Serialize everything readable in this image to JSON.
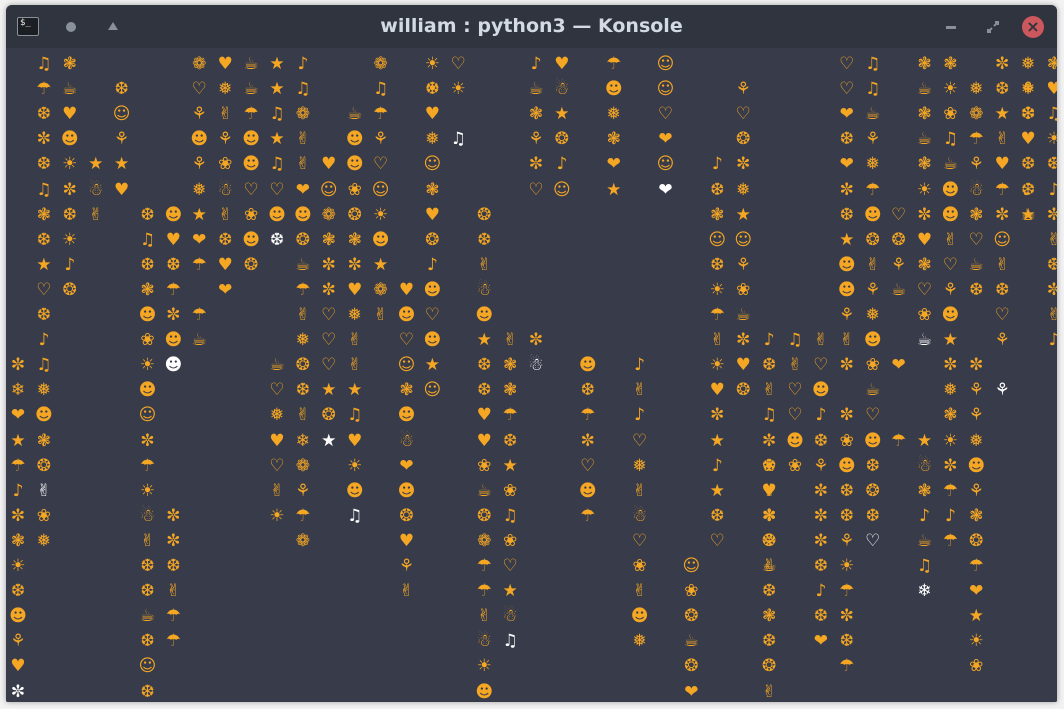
{
  "window": {
    "title": "william : python3 — Konsole",
    "app_icon_text": "$_",
    "close_symbol": "×"
  },
  "colors": {
    "background": "#383c4a",
    "titlebar": "#2f343f",
    "glyph": "#f5a623",
    "glyph_highlight": "#ffffff",
    "close_button": "#cc575d"
  },
  "icons": {
    "pin": "dot-icon",
    "keep_above": "triangle-up-icon",
    "minimize": "minimize-icon",
    "maximize": "restore-icon",
    "close": "close-icon"
  },
  "terminal": {
    "columns": [
      {
        "c": 0,
        "r": 12,
        "g": "✼❄❤★☂♪✼❃☀❆☻⚘♥✼",
        "w": "00000000000001"
      },
      {
        "c": 1,
        "r": 0,
        "g": "♫☂❆✼❆♫❃❆★♡❆♪♫❅☻❃❂✌❀❅",
        "w": "00000000000000000100"
      },
      {
        "c": 2,
        "r": 0,
        "g": "❃☕♥☻☀✼❆☀♪❂",
        "w": "0000000000"
      },
      {
        "c": 3,
        "r": 4,
        "g": "★☃✌",
        "w": "000"
      },
      {
        "c": 4,
        "r": 1,
        "g": "❆☺⚘★♥",
        "w": "00000"
      },
      {
        "c": 5,
        "r": 6,
        "g": "❆♫❆❃☻❀☀☻☺✼☂☀☃✌❆❆☕❆☺❆♥",
        "w": "000000000000000000000"
      },
      {
        "c": 6,
        "r": 8,
        "g": "❆☂✼☻",
        "w": "0003"
      },
      {
        "c": 6,
        "r": 6,
        "g": "☻♥❆",
        "w": "000"
      },
      {
        "c": 6,
        "r": 12,
        "g": "☻",
        "w": "1"
      },
      {
        "c": 6,
        "r": 18,
        "g": "✼✼❆✌☂☂",
        "w": "000000"
      },
      {
        "c": 7,
        "r": 0,
        "g": "❁♡⚘☻⚘❅★❤☂",
        "w": "000000000"
      },
      {
        "c": 7,
        "r": 10,
        "g": "☂☕",
        "w": "00"
      },
      {
        "c": 8,
        "r": 0,
        "g": "♥❅✌⚘❀☃✌❆♥",
        "w": "000000000"
      },
      {
        "c": 8,
        "r": 9,
        "g": "❤",
        "w": "0"
      },
      {
        "c": 9,
        "r": 0,
        "g": "☕☕☂☻☻♡❀☻❂",
        "w": "000000000"
      },
      {
        "c": 10,
        "r": 0,
        "g": "★★♫★♫♡☻❆",
        "w": "00000001"
      },
      {
        "c": 10,
        "r": 12,
        "g": "☕♡❅♥♡✌☀",
        "w": "0000000"
      },
      {
        "c": 11,
        "r": 0,
        "g": "♪♫❁✌✌❤☻❂☕☂✌❅❂❆✌❄❁⚘☂❁",
        "w": "00000000000000000000"
      },
      {
        "c": 11,
        "r": 10,
        "g": "",
        "w": ""
      },
      {
        "c": 12,
        "r": 4,
        "g": "♥☺❁❃✼✼♡♡♡★❂★",
        "w": "000000000001"
      },
      {
        "c": 13,
        "r": 2,
        "g": "☕☻☻❀❂❃✼♥❅✌✌★♫♥☀☻♫",
        "w": "00000000000000001"
      },
      {
        "c": 14,
        "r": 0,
        "g": "❁♫☂⚘♡☺☀☻★❁✌",
        "w": "00000000000"
      },
      {
        "c": 15,
        "r": 9,
        "g": "♥☻♡☺❃☻☃❤☻❂♥⚘✌",
        "w": "0000000000000"
      },
      {
        "c": 16,
        "r": 0,
        "g": "☀❆♥❅☺❃♥❂♪☻♡☻★☺",
        "w": "00000000000000"
      },
      {
        "c": 16,
        "r": 1,
        "g": "☀",
        "w": "0"
      },
      {
        "c": 17,
        "r": 0,
        "g": "♡",
        "w": "0"
      },
      {
        "c": 17,
        "r": 3,
        "g": "♫",
        "w": "1"
      },
      {
        "c": 17,
        "r": 4,
        "g": "",
        "w": ""
      },
      {
        "c": 17,
        "r": 6,
        "g": "",
        "w": ""
      },
      {
        "c": 17,
        "r": 11,
        "g": "",
        "w": ""
      },
      {
        "c": 17,
        "r": 1,
        "g": "☀",
        "w": "0"
      },
      {
        "c": 18,
        "r": 6,
        "g": "❂❆✌☃☻★❆❆♥♥❀☕❂❁☂☂✌☃☀☻❀☻",
        "w": "0000000000000000000000"
      },
      {
        "c": 19,
        "r": 11,
        "g": "✌❃❃☂❆★❀♫❀♡★☃♫",
        "w": "0000000000001"
      },
      {
        "c": 20,
        "r": 11,
        "g": "✼☃",
        "w": "01"
      },
      {
        "c": 20,
        "r": 0,
        "g": "♪☕❃⚘✼♡",
        "w": "000000"
      },
      {
        "c": 21,
        "r": 0,
        "g": "♥☃★❂♪☺",
        "w": "000000"
      },
      {
        "c": 21,
        "r": 5,
        "g": "",
        "w": ""
      },
      {
        "c": 22,
        "r": 12,
        "g": "☻❆☂✼♡☻☂",
        "w": "0000000"
      },
      {
        "c": 23,
        "r": 0,
        "g": "☂☻❅❃❤★",
        "w": "000000"
      },
      {
        "c": 24,
        "r": 12,
        "g": "♪✌♪♡❅✌☃♡❀✌☻❅",
        "w": "000000000000"
      },
      {
        "c": 25,
        "r": 0,
        "g": "☺☺♡❤☺❤",
        "w": "000001"
      },
      {
        "c": 26,
        "r": 20,
        "g": "☺❀❂☕❂❤",
        "w": "000000"
      },
      {
        "c": 27,
        "r": 4,
        "g": "♪❆❃☺❆☀☂✌☀♥✼★♪★❆♡",
        "w": "0000000000000000"
      },
      {
        "c": 28,
        "r": 1,
        "g": "⚘♡❂✼❅★☺⚘❀☕✼♥❂",
        "w": "0000000000000"
      },
      {
        "c": 29,
        "r": 11,
        "g": "♪❆✌♫✼❆♥❃❂✌",
        "w": "0000000000"
      },
      {
        "c": 29,
        "r": 16,
        "g": "❀✌",
        "w": "00"
      },
      {
        "c": 29,
        "r": 18,
        "g": "✼⚘☕❆❃❆❂✌♫",
        "w": "000000000"
      },
      {
        "c": 30,
        "r": 11,
        "g": "♫✌♡♡☻❀",
        "w": "000000"
      },
      {
        "c": 31,
        "r": 11,
        "g": "✌♡",
        "w": "00"
      },
      {
        "c": 31,
        "r": 13,
        "g": "☻♪❆⚘✼✼✼❆♪❆❤",
        "w": "00000000000"
      },
      {
        "c": 32,
        "r": 0,
        "g": "♡♡❤❆❤✼❆★☻☻⚘✌✼",
        "w": "0000000000000"
      },
      {
        "c": 32,
        "r": 14,
        "g": "✼❀☻❆❆⚘☀☂✼❆☂",
        "w": "00000000000"
      },
      {
        "c": 33,
        "r": 0,
        "g": "♫♫☕⚘❅☂☻❂✌⚘❅☻",
        "w": "000000000000"
      },
      {
        "c": 33,
        "r": 12,
        "g": "❀☕♡☻❆❂❆♡",
        "w": "00000001"
      },
      {
        "c": 34,
        "r": 6,
        "g": "♡❂⚘☕",
        "w": "0000"
      },
      {
        "c": 34,
        "r": 12,
        "g": "❤",
        "w": "0"
      },
      {
        "c": 34,
        "r": 15,
        "g": "☂",
        "w": "0"
      },
      {
        "c": 35,
        "r": 0,
        "g": "❃☕❃☕❃☀✼♥❃♡❀",
        "w": "00000000000"
      },
      {
        "c": 35,
        "r": 11,
        "g": "☕",
        "w": "1"
      },
      {
        "c": 35,
        "r": 15,
        "g": "★☃❃♪☕♫❄",
        "w": "0000001"
      },
      {
        "c": 36,
        "r": 0,
        "g": "❃☀❀♫☕☻☻✌♡⚘☻★✼❅❃☀✼☂♪☂",
        "w": "00000000000000000000"
      },
      {
        "c": 37,
        "r": 1,
        "g": "❅❁☂⚘☃❃♡☕❆",
        "w": "000000000"
      },
      {
        "c": 37,
        "r": 12,
        "g": "✼⚘⚘❅☻⚘❃❂☂❤★☀❀",
        "w": "0000000000000"
      },
      {
        "c": 38,
        "r": 0,
        "g": "✼❆★✌♥☂✼☺✌❆♡⚘",
        "w": "000000000000"
      },
      {
        "c": 38,
        "r": 13,
        "g": "⚘",
        "w": "1"
      },
      {
        "c": 39,
        "r": 0,
        "g": "❅⚘❆♥❆♪★",
        "w": "0000000"
      },
      {
        "c": 39,
        "r": 1,
        "g": "❅✼",
        "w": "00"
      },
      {
        "c": 39,
        "r": 5,
        "g": "❆☕",
        "w": "00"
      },
      {
        "c": 40,
        "r": 0,
        "g": "❃♥♫☀❆♪✼✌❆✼✌♪",
        "w": "000000000000"
      }
    ]
  }
}
